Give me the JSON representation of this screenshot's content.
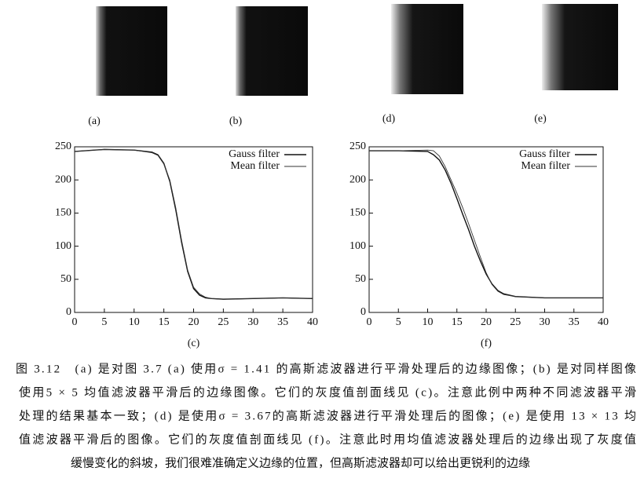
{
  "images": [
    {
      "label": "(a)"
    },
    {
      "label": "(b)"
    },
    {
      "label": "(d)"
    },
    {
      "label": "(e)"
    }
  ],
  "chart_data": [
    {
      "type": "line",
      "title": "(c)",
      "x": [
        0,
        5,
        10,
        13,
        14,
        15,
        16,
        17,
        18,
        19,
        20,
        21,
        22,
        23,
        25,
        30,
        35,
        40
      ],
      "series": [
        {
          "name": "Gauss filter",
          "color": "#111111",
          "values": [
            243,
            246,
            245,
            242,
            238,
            225,
            198,
            155,
            105,
            62,
            36,
            26,
            22,
            21,
            20,
            21,
            22,
            21
          ]
        },
        {
          "name": "Mean filter",
          "color": "#333333",
          "values": [
            243,
            246,
            245,
            241,
            237,
            224,
            200,
            158,
            108,
            64,
            38,
            28,
            23,
            21,
            20,
            21,
            22,
            21
          ]
        }
      ],
      "xlim": [
        0,
        40
      ],
      "ylim": [
        0,
        250
      ],
      "xticks": [
        0,
        5,
        10,
        15,
        20,
        25,
        30,
        35,
        40
      ],
      "yticks": [
        0,
        50,
        100,
        150,
        200,
        250
      ],
      "legend": "upper right"
    },
    {
      "type": "line",
      "title": "(f)",
      "x": [
        0,
        5,
        10,
        11,
        12,
        13,
        14,
        15,
        16,
        17,
        18,
        19,
        20,
        21,
        22,
        23,
        25,
        30,
        40
      ],
      "series": [
        {
          "name": "Gauss filter",
          "color": "#111111",
          "values": [
            244,
            244,
            243,
            238,
            230,
            215,
            195,
            172,
            148,
            125,
            100,
            78,
            58,
            43,
            33,
            28,
            24,
            22,
            22
          ]
        },
        {
          "name": "Mean filter",
          "color": "#333333",
          "values": [
            244,
            244,
            245,
            244,
            236,
            220,
            200,
            180,
            158,
            134,
            109,
            84,
            60,
            42,
            32,
            27,
            24,
            22,
            22
          ]
        }
      ],
      "xlim": [
        0,
        40
      ],
      "ylim": [
        0,
        250
      ],
      "xticks": [
        0,
        5,
        10,
        15,
        20,
        25,
        30,
        35,
        40
      ],
      "yticks": [
        0,
        50,
        100,
        150,
        200,
        250
      ],
      "legend": "upper right"
    }
  ],
  "caption": [
    "图 3.12　(a) 是对图 3.7 (a) 使用σ = 1.41 的高斯滤波器进行平滑处理后的边缘图像；(b) 是对同样图像",
    "使用5 × 5 均值滤波器平滑后的边缘图像。它们的灰度值剖面线见 (c)。注意此例中两种不同滤波器平滑",
    "处理的结果基本一致；(d) 是使用σ = 3.67的高斯滤波器进行平滑处理后的图像；(e) 是使用 13 × 13 均",
    "值滤波器平滑后的图像。它们的灰度值剖面线见 (f)。注意此时用均值滤波器处理后的边缘出现了灰度值",
    "缓慢变化的斜坡，我们很难准确定义边缘的位置，但高斯滤波器却可以给出更锐利的边缘"
  ]
}
